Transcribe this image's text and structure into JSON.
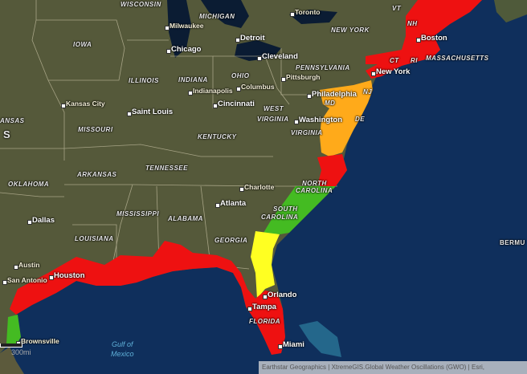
{
  "map": {
    "colors": {
      "land": "#55593a",
      "ocean": "#0f2f5c",
      "red": "#ee1111",
      "orange": "#ffaa1a",
      "yellow": "#ffff22",
      "green": "#44bb22",
      "borders": "#c9c3a5"
    },
    "states": [
      "WISCONSIN",
      "MICHIGAN",
      "IOWA",
      "ILLINOIS",
      "INDIANA",
      "OHIO",
      "PENNSYLVANIA",
      "NEW YORK",
      "VT",
      "NH",
      "MASSACHUSETTS",
      "CT",
      "RI",
      "NJ",
      "DE",
      "MD",
      "WEST",
      "VIRGINIA",
      "VIRGINIA",
      "KENTUCKY",
      "MISSOURI",
      "ANSAS",
      "S",
      "TENNESSEE",
      "ARKANSAS",
      "OKLAHOMA",
      "NORTH",
      "CAROLINA",
      "SOUTH",
      "CAROLINA",
      "MISSISSIPPI",
      "ALABAMA",
      "GEORGIA",
      "LOUISIANA",
      "FLORIDA",
      "BERMU"
    ],
    "cities": [
      "Milwaukee",
      "Chicago",
      "Detroit",
      "Cleveland",
      "Toronto",
      "Boston",
      "New York",
      "Pittsburgh",
      "Philadelphia",
      "Washington",
      "Columbus",
      "Indianapolis",
      "Cincinnati",
      "Kansas City",
      "Saint Louis",
      "Charlotte",
      "Atlanta",
      "Dallas",
      "Austin",
      "San Antonio",
      "Houston",
      "Brownsville",
      "Orlando",
      "Tampa",
      "Miami"
    ],
    "water": [
      "Gulf of",
      "Mexico"
    ],
    "scale_label": "300mi",
    "attribution": "Earthstar Geographics | XtremeGIS.Global Weather Oscillations (GWO) | Esri,"
  }
}
